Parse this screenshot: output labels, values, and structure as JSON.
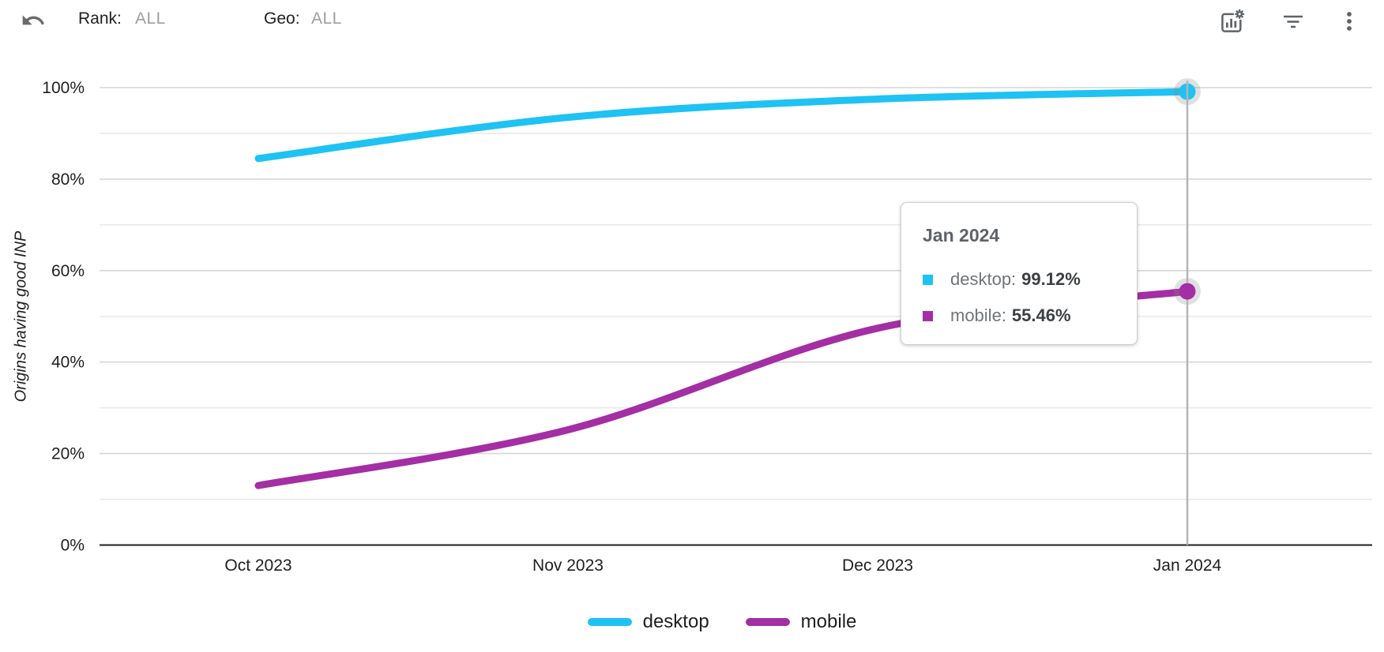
{
  "toolbar": {
    "undo_icon": "undo-icon",
    "rank_label": "Rank:",
    "rank_value": "ALL",
    "geo_label": "Geo:",
    "geo_value": "ALL",
    "right_icons": [
      "chart-settings-icon",
      "filter-icon",
      "more-vertical-icon"
    ]
  },
  "chart_data": {
    "type": "line",
    "title": "",
    "ylabel": "Origins having good INP",
    "categories": [
      "Oct 2023",
      "Nov 2023",
      "Dec 2023",
      "Jan 2024"
    ],
    "y_tick_labels": [
      "0%",
      "20%",
      "40%",
      "60%",
      "80%",
      "100%"
    ],
    "ylim": [
      0,
      100
    ],
    "grid": "horizontal, minor every 10%, major every 20%",
    "legend_position": "bottom",
    "series": [
      {
        "name": "desktop",
        "color": "#1EC2F3",
        "values": [
          84.5,
          93.5,
          97.5,
          99.12
        ]
      },
      {
        "name": "mobile",
        "color": "#A42EA4",
        "values": [
          13.0,
          25.2,
          47.4,
          55.46
        ]
      }
    ],
    "hover": {
      "index": 3,
      "label": "Jan 2024"
    }
  },
  "tooltip": {
    "title": "Jan 2024",
    "rows": [
      {
        "label": "desktop:",
        "value": "99.12%",
        "color": "#1EC2F3"
      },
      {
        "label": "mobile:",
        "value": "55.46%",
        "color": "#A42EA4"
      }
    ]
  },
  "legend": {
    "items": [
      {
        "label": "desktop",
        "color": "#1EC2F3"
      },
      {
        "label": "mobile",
        "color": "#A42EA4"
      }
    ]
  }
}
